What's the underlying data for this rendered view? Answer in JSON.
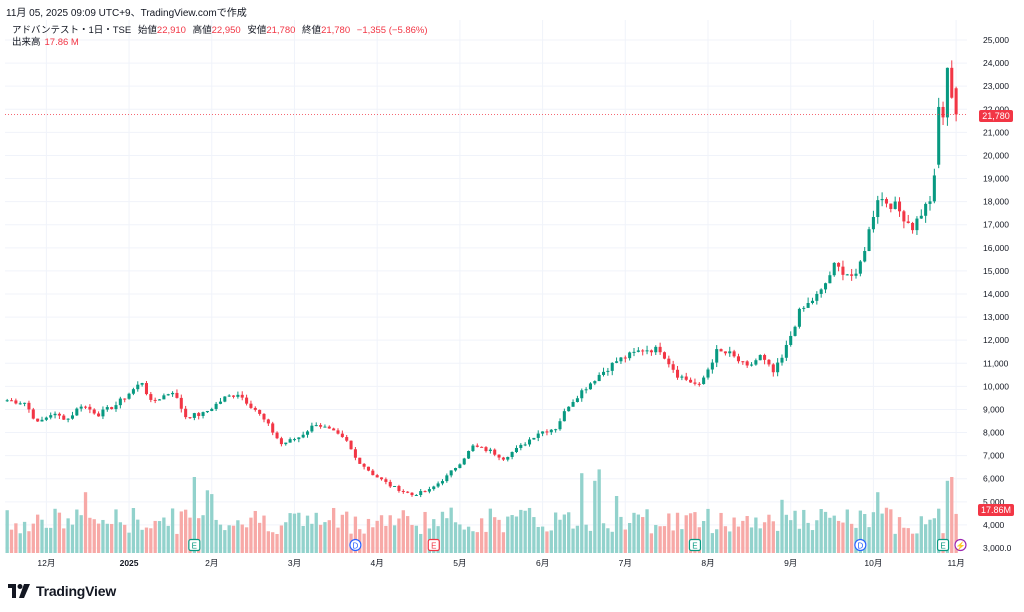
{
  "header": {
    "timestamp": "11月 05, 2025 09:09 UTC+9、TradingView.comで作成",
    "symbol": "アドバンテスト・1日・TSE",
    "open_label": "始値",
    "open": "22,910",
    "high_label": "高値",
    "high": "22,950",
    "low_label": "安値",
    "low": "21,780",
    "close_label": "終値",
    "close": "21,780",
    "change": "−1,355 (−5.86%)",
    "volume_label": "出来高",
    "volume": "17.86 M"
  },
  "brand": {
    "name": "TradingView"
  },
  "colors": {
    "up": "#089981",
    "down": "#f23645",
    "up_vol": "#92d2cc",
    "down_vol": "#f7a9a7"
  },
  "chart_data": {
    "type": "candlestick",
    "title": "アドバンテスト・1日・TSE",
    "y_axis": {
      "min": 2800,
      "max": 25500,
      "tick_labels": [
        "25,000",
        "24,000",
        "23,000",
        "22,000",
        "21,000",
        "20,000",
        "19,000",
        "18,000",
        "17,000",
        "16,000",
        "15,000",
        "14,000",
        "13,000",
        "12,000",
        "11,000",
        "10,000",
        "9,000",
        "8,000",
        "7,000",
        "6,000",
        "5,000",
        "4,000",
        "3,000.0"
      ],
      "tick_values": [
        25000,
        24000,
        23000,
        22000,
        21000,
        20000,
        19000,
        18000,
        17000,
        16000,
        15000,
        14000,
        13000,
        12000,
        11000,
        10000,
        9000,
        8000,
        7000,
        6000,
        5000,
        4000,
        3000
      ]
    },
    "x_axis": {
      "tick_labels": [
        "12月",
        "2025",
        "2月",
        "3月",
        "4月",
        "5月",
        "6月",
        "7月",
        "8月",
        "9月",
        "10月",
        "11月"
      ],
      "tick_positions_bars": [
        9,
        28,
        47,
        66,
        85,
        104,
        123,
        142,
        161,
        180,
        199,
        218
      ]
    },
    "last_price": "21,780",
    "last_price_value": 21780,
    "volume_label": "17.86M",
    "anchors": [
      [
        0,
        9400
      ],
      [
        4,
        9300
      ],
      [
        7,
        8400
      ],
      [
        10,
        8800
      ],
      [
        14,
        8600
      ],
      [
        17,
        9200
      ],
      [
        21,
        8800
      ],
      [
        25,
        9200
      ],
      [
        31,
        10200
      ],
      [
        33,
        9300
      ],
      [
        38,
        9800
      ],
      [
        41,
        8700
      ],
      [
        45,
        8800
      ],
      [
        50,
        9500
      ],
      [
        53,
        9700
      ],
      [
        57,
        9000
      ],
      [
        60,
        8300
      ],
      [
        63,
        7500
      ],
      [
        67,
        7800
      ],
      [
        71,
        8400
      ],
      [
        75,
        8000
      ],
      [
        78,
        7600
      ],
      [
        80,
        6900
      ],
      [
        84,
        6200
      ],
      [
        88,
        5700
      ],
      [
        93,
        5300
      ],
      [
        97,
        5500
      ],
      [
        101,
        6100
      ],
      [
        104,
        6700
      ],
      [
        107,
        7400
      ],
      [
        111,
        7200
      ],
      [
        114,
        6900
      ],
      [
        118,
        7400
      ],
      [
        122,
        8000
      ],
      [
        126,
        8200
      ],
      [
        129,
        9200
      ],
      [
        132,
        9800
      ],
      [
        136,
        10500
      ],
      [
        140,
        11100
      ],
      [
        146,
        11600
      ],
      [
        150,
        11600
      ],
      [
        154,
        10500
      ],
      [
        159,
        10000
      ],
      [
        163,
        11500
      ],
      [
        166,
        11400
      ],
      [
        170,
        10800
      ],
      [
        173,
        11300
      ],
      [
        176,
        10600
      ],
      [
        178,
        11200
      ],
      [
        182,
        13200
      ],
      [
        187,
        14100
      ],
      [
        190,
        15200
      ],
      [
        195,
        14700
      ],
      [
        197,
        16000
      ],
      [
        200,
        18200
      ],
      [
        204,
        17800
      ],
      [
        208,
        16900
      ],
      [
        212,
        18100
      ],
      [
        214,
        19800
      ],
      [
        216,
        23600
      ],
      [
        218,
        21780
      ]
    ],
    "volume_range_m": [
      0,
      40
    ],
    "volumes_note": "daily volume histogram, peaks near 40M",
    "event_markers": [
      {
        "label": "E",
        "bar": 43,
        "color": "#089981"
      },
      {
        "label": "D",
        "bar": 80,
        "color": "#2962ff"
      },
      {
        "label": "E",
        "bar": 98,
        "color": "#f23645"
      },
      {
        "label": "E",
        "bar": 158,
        "color": "#089981"
      },
      {
        "label": "D",
        "bar": 196,
        "color": "#2962ff"
      },
      {
        "label": "E",
        "bar": 215,
        "color": "#089981"
      },
      {
        "label": "⚡",
        "bar": 219,
        "color": "#9c27b0"
      }
    ]
  }
}
